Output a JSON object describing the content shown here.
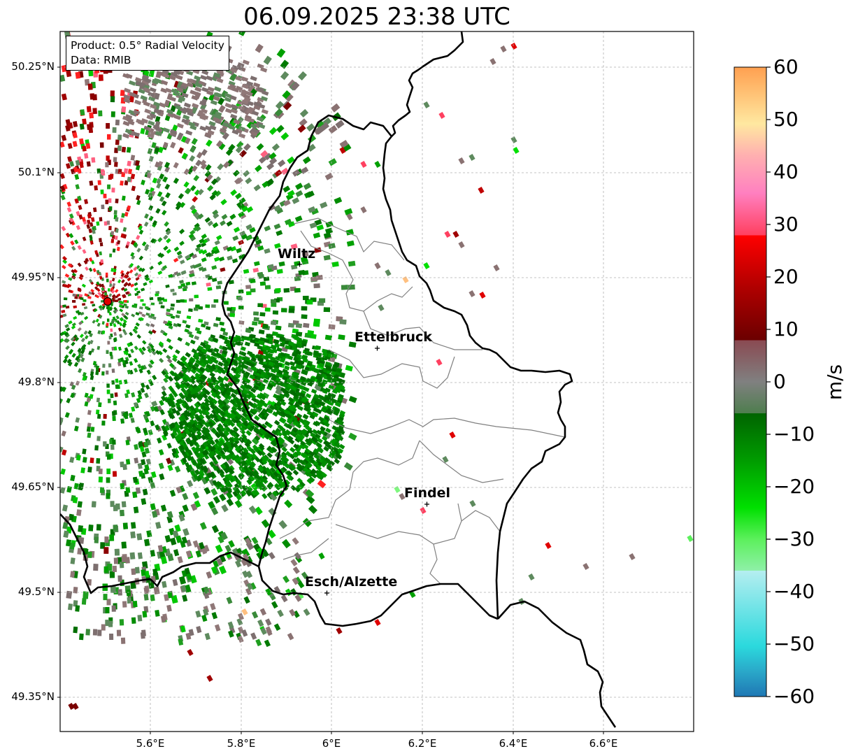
{
  "title": "06.09.2025 23:38 UTC",
  "info_box": {
    "product_line": "Product: 0.5° Radial Velocity",
    "data_line": "Data: RMIB"
  },
  "map": {
    "lon_ticks": [
      "5.6°E",
      "5.8°E",
      "6°E",
      "6.2°E",
      "6.4°E",
      "6.6°E"
    ],
    "lat_ticks": [
      "50.25°N",
      "50.1°N",
      "49.95°N",
      "49.8°N",
      "49.65°N",
      "49.5°N",
      "49.35°N"
    ],
    "cities": [
      {
        "name": "Wiltz",
        "lon": 5.93,
        "lat": 49.97
      },
      {
        "name": "Ettelbruck",
        "lon": 6.1,
        "lat": 49.85
      },
      {
        "name": "Findel",
        "lon": 6.21,
        "lat": 49.63
      },
      {
        "name": "Esch/Alzette",
        "lon": 5.99,
        "lat": 49.5
      }
    ],
    "radar_site": {
      "lon": 5.505,
      "lat": 49.915
    },
    "extent": {
      "lon_min": 5.4,
      "lon_max": 6.8,
      "lat_min": 49.3,
      "lat_max": 50.3
    },
    "grid": true
  },
  "colorbar": {
    "label": "m/s",
    "ticks": [
      "60",
      "50",
      "40",
      "30",
      "20",
      "10",
      "0",
      "−10",
      "−20",
      "−30",
      "−40",
      "−50",
      "−60"
    ],
    "min": -60,
    "max": 60,
    "colors": {
      "dark_blue": "#1f77b4",
      "cyan": "#2bd9dd",
      "light_cyan": "#b5eef0",
      "light_green": "#7ef77e",
      "bright_green": "#00e000",
      "dark_green": "#006400",
      "grey_green": "#5e8a5e",
      "grey_brown": "#8a7272",
      "dark_red": "#7a0000",
      "red": "#ff0000",
      "pink": "#ff80c0",
      "light_peach": "#ffe8a0",
      "orange": "#ffa050"
    }
  }
}
